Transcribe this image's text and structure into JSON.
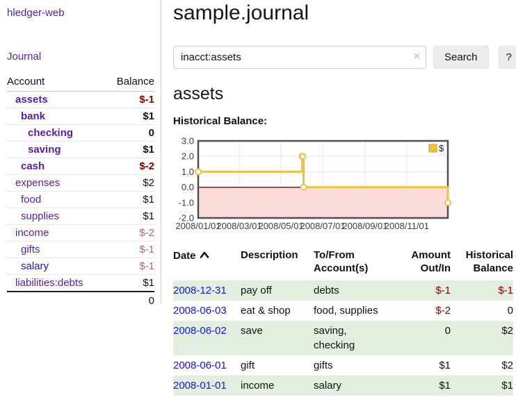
{
  "colors": {
    "link-purple": "#5b1da8",
    "link-blue": "#1616e0",
    "negative": "#8b0000",
    "negative-soft": "#b36b6b",
    "row-green": "#e2efdf",
    "chart-gold": "#ecc23f",
    "chart-gold-dark": "#c9a02c",
    "chart-pink": "#fcdbdb",
    "chart-zero": "#8f1414",
    "chart-border": "#4f4f4f",
    "chart-grid": "#e4e4e4",
    "chart-tick-text": "#3c3c3c",
    "divider": "#cccccc"
  },
  "sidebar": {
    "brand": "hledger-web",
    "nav_journal": "Journal",
    "header": {
      "account": "Account",
      "balance": "Balance"
    },
    "accounts": [
      {
        "name": "assets",
        "depth": 1,
        "in_focus": true,
        "balance": "$-1",
        "balance_style": "neg"
      },
      {
        "name": "bank",
        "depth": 2,
        "in_focus": true,
        "balance": "$1",
        "balance_style": "pos"
      },
      {
        "name": "checking",
        "depth": 3,
        "in_focus": true,
        "balance": "0",
        "balance_style": "pos"
      },
      {
        "name": "saving",
        "depth": 3,
        "in_focus": true,
        "balance": "$1",
        "balance_style": "pos"
      },
      {
        "name": "cash",
        "depth": 2,
        "in_focus": true,
        "balance": "$-2",
        "balance_style": "neg"
      },
      {
        "name": "expenses",
        "depth": 1,
        "in_focus": false,
        "balance": "$2",
        "balance_style": "pos"
      },
      {
        "name": "food",
        "depth": 2,
        "in_focus": false,
        "balance": "$1",
        "balance_style": "pos"
      },
      {
        "name": "supplies",
        "depth": 2,
        "in_focus": false,
        "balance": "$1",
        "balance_style": "pos"
      },
      {
        "name": "income",
        "depth": 1,
        "in_focus": false,
        "balance": "$-2",
        "balance_style": "neg-soft"
      },
      {
        "name": "gifts",
        "depth": 2,
        "in_focus": false,
        "balance": "$-1",
        "balance_style": "neg-soft"
      },
      {
        "name": "salary",
        "depth": 2,
        "in_focus": false,
        "link_style": "blue",
        "balance": "$-1",
        "balance_style": "neg-soft"
      },
      {
        "name": "liabilities:debts",
        "depth": 1,
        "in_focus": false,
        "balance": "$1",
        "balance_style": "pos"
      }
    ],
    "total": "0"
  },
  "main": {
    "title": "sample.journal",
    "search": {
      "value": "inacct:assets",
      "clear_icon": "×",
      "button_label": "Search",
      "help_label": "?"
    },
    "account_heading": "assets"
  },
  "chart_data": {
    "type": "line",
    "title": "Historical Balance:",
    "step": true,
    "series": [
      {
        "name": "$",
        "points": [
          [
            "2008-01-01",
            1
          ],
          [
            "2008-06-01",
            2
          ],
          [
            "2008-06-02",
            2
          ],
          [
            "2008-06-03",
            0
          ],
          [
            "2008-12-31",
            -1
          ]
        ]
      }
    ],
    "x_range": [
      "2008-01-01",
      "2008-12-31"
    ],
    "ylim": [
      -2,
      3
    ],
    "yticks": [
      "3.0",
      "2.0",
      "1.0",
      "0.0",
      "-1.0",
      "-2.0"
    ],
    "xticks": [
      "2008/01/01",
      "2008/03/01",
      "2008/05/01",
      "2008/07/01",
      "2008/09/01",
      "2008/11/01"
    ],
    "legend": {
      "label": "$",
      "position": "top-right"
    },
    "grid": true,
    "negative_region_shaded": true
  },
  "register": {
    "columns": [
      {
        "line1": "Date",
        "line2": "",
        "align": "left",
        "sort": "ascending"
      },
      {
        "line1": "Description",
        "line2": "",
        "align": "left"
      },
      {
        "line1": "To/From",
        "line2": "Account(s)",
        "align": "left"
      },
      {
        "line1": "Amount",
        "line2": "Out/In",
        "align": "right"
      },
      {
        "line1": "Historical",
        "line2": "Balance",
        "align": "right"
      }
    ],
    "rows": [
      {
        "date": "2008-12-31",
        "description": "pay off",
        "accounts": "debts",
        "amount": "$-1",
        "amount_style": "neg",
        "balance": "$-1",
        "balance_style": "neg",
        "shaded": true
      },
      {
        "date": "2008-06-03",
        "description": "eat & shop",
        "accounts": "food, supplies",
        "amount": "$-2",
        "amount_style": "neg",
        "balance": "0",
        "balance_style": "pos",
        "shaded": false
      },
      {
        "date": "2008-06-02",
        "description": "save",
        "accounts": "saving, checking",
        "amount": "0",
        "amount_style": "pos",
        "balance": "$2",
        "balance_style": "pos",
        "shaded": true
      },
      {
        "date": "2008-06-01",
        "description": "gift",
        "accounts": "gifts",
        "amount": "$1",
        "amount_style": "pos",
        "balance": "$2",
        "balance_style": "pos",
        "shaded": false
      },
      {
        "date": "2008-01-01",
        "description": "income",
        "accounts": "salary",
        "amount": "$1",
        "amount_style": "pos",
        "balance": "$1",
        "balance_style": "pos",
        "shaded": true
      }
    ]
  }
}
